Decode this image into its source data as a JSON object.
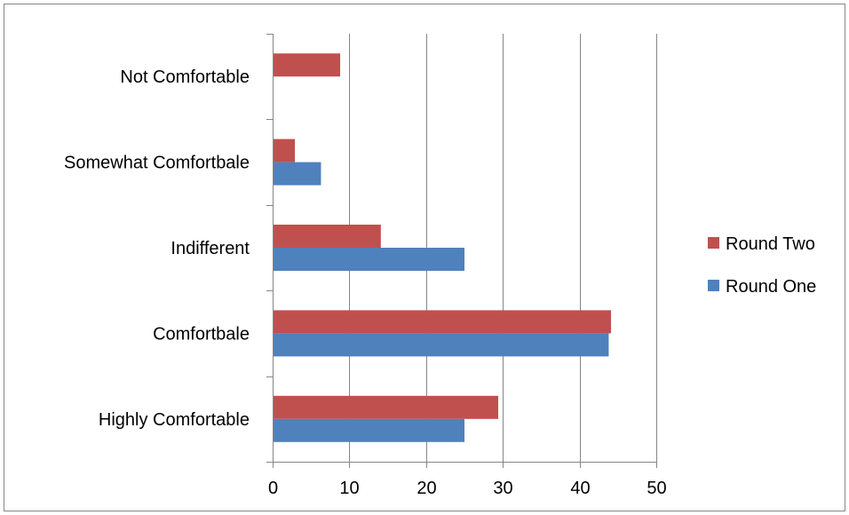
{
  "colors": {
    "round_two": "#c0504d",
    "round_one": "#4f81bd",
    "grid": "#868686",
    "frame": "#868686",
    "background": "#ffffff"
  },
  "chart_data": {
    "type": "bar",
    "orientation": "horizontal",
    "categories": [
      "Highly Comfortable",
      "Comfortbale",
      "Indifferent",
      "Somewhat Comfortbale",
      "Not Comfortable"
    ],
    "series": [
      {
        "name": "Round One",
        "color": "#4f81bd",
        "values": [
          25,
          43.8,
          25,
          6.3,
          0
        ]
      },
      {
        "name": "Round Two",
        "color": "#c0504d",
        "values": [
          29.4,
          44.1,
          14.1,
          2.9,
          8.8
        ]
      }
    ],
    "xlim": [
      0,
      50
    ],
    "xticks": [
      "0",
      "10",
      "20",
      "30",
      "40",
      "50"
    ],
    "grid": true,
    "legend": {
      "position": "right",
      "entries": [
        "Round Two",
        "Round One"
      ]
    },
    "title": "",
    "xlabel": "",
    "ylabel": ""
  }
}
